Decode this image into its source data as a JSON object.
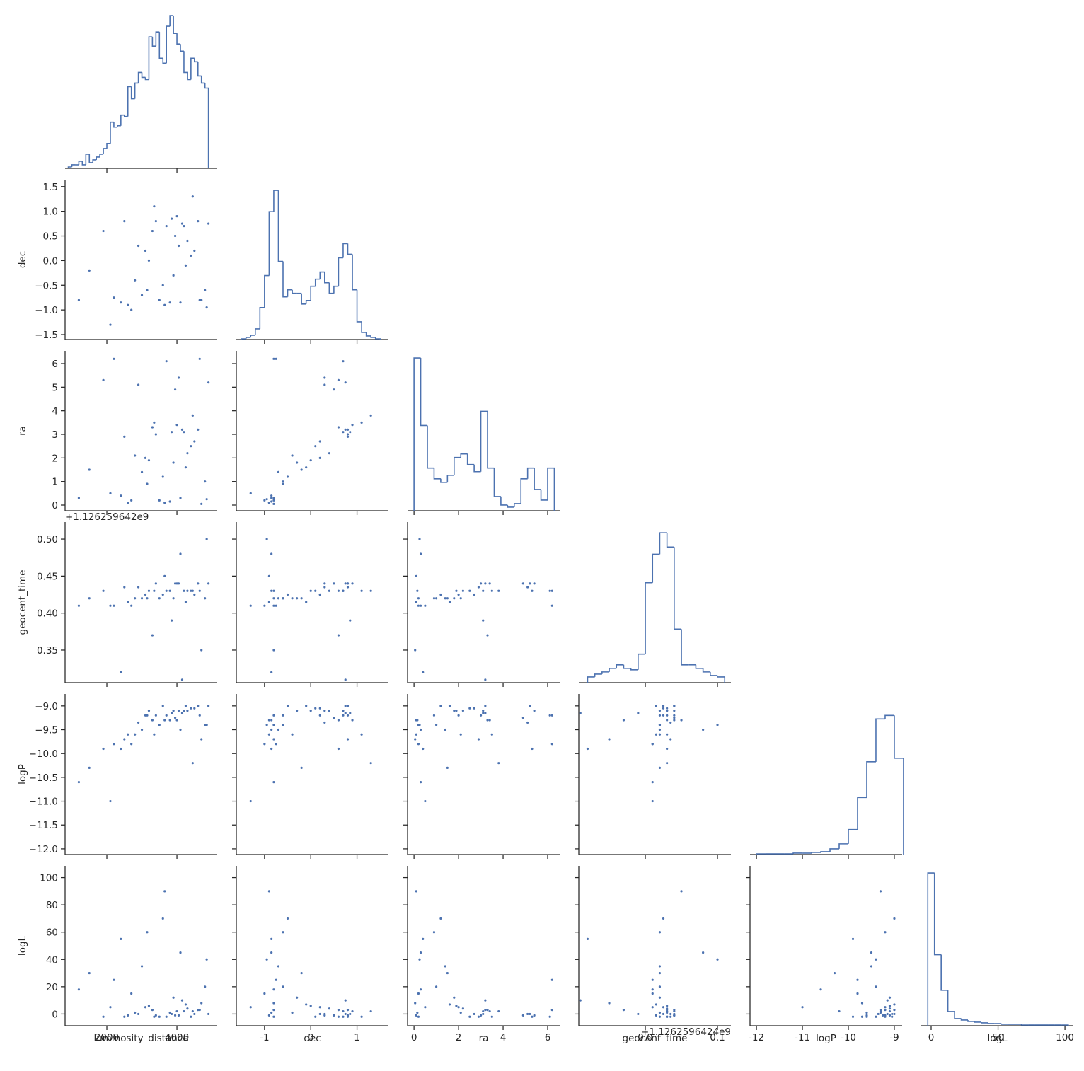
{
  "chart_data": {
    "type": "pairplot",
    "color": "#4c72b0",
    "variables": [
      {
        "name": "luminosity_distance",
        "xlim": [
          808,
          5150
        ],
        "xticks": [
          2000,
          4000
        ]
      },
      {
        "name": "dec",
        "xlim": [
          -1.61,
          1.68
        ],
        "xticks": [
          -1,
          0,
          1
        ],
        "ylim": [
          -1.6,
          1.64
        ],
        "yticks": [
          {
            "value": -1.5,
            "label": "−1.5"
          },
          {
            "value": -1.0,
            "label": "−1.0"
          },
          {
            "value": -0.5,
            "label": "−0.5"
          },
          {
            "value": 0,
            "label": "0.0"
          },
          {
            "value": 0.5,
            "label": "0.5"
          },
          {
            "value": 1.0,
            "label": "1.0"
          },
          {
            "value": 1.5,
            "label": "1.5"
          }
        ]
      },
      {
        "name": "ra",
        "xlim": [
          -0.29,
          6.54
        ],
        "xticks": [
          0,
          2,
          4,
          6
        ],
        "ylim": [
          -0.24,
          6.54
        ],
        "yticks": [
          0,
          1,
          2,
          3,
          4,
          5,
          6
        ]
      },
      {
        "name": "geocent_time",
        "xlim": [
          0.3078,
          0.5186
        ],
        "xticks": [
          {
            "value": 0.4,
            "label": "0.0"
          },
          {
            "value": 0.5,
            "label": "0.1"
          }
        ],
        "ylim": [
          0.306,
          0.523
        ],
        "yticks": [
          0.35,
          {
            "value": 0.4,
            "label": "0.40"
          },
          0.45,
          {
            "value": 0.5,
            "label": "0.50"
          }
        ],
        "y_offset": "+1.126259642e9",
        "x_offset": "+1.1262596424e9"
      },
      {
        "name": "logP",
        "xlim": [
          -12.14,
          -8.83
        ],
        "xticks": [
          -12,
          -11,
          -10,
          -9
        ],
        "ylim": [
          -12.12,
          -8.75
        ],
        "yticks": [
          {
            "value": -12,
            "label": "−12.0"
          },
          {
            "value": -11.5,
            "label": "−11.5"
          },
          {
            "value": -11,
            "label": "−11.0"
          },
          {
            "value": -10.5,
            "label": "−10.5"
          },
          {
            "value": -10,
            "label": "−10.0"
          },
          {
            "value": -9.5,
            "label": "−9.5"
          },
          {
            "value": -9,
            "label": "−9.0"
          }
        ]
      },
      {
        "name": "logL",
        "xlim": [
          -7.4,
          106.3
        ],
        "xticks": [
          0,
          50,
          100
        ],
        "ylim": [
          -8.6,
          108.6
        ],
        "yticks": [
          0,
          20,
          40,
          60,
          80,
          100
        ]
      }
    ],
    "histograms": [
      {
        "bins": [
          900,
          1000,
          1100,
          1200,
          1300,
          1400,
          1500,
          1600,
          1700,
          1800,
          1900,
          2000,
          2100,
          2200,
          2300,
          2400,
          2500,
          2600,
          2700,
          2800,
          2900,
          3000,
          3100,
          3200,
          3300,
          3400,
          3500,
          3600,
          3700,
          3800,
          3900,
          4000,
          4100,
          4200,
          4300,
          4400,
          4500,
          4600,
          4700,
          4800,
          4900
        ],
        "counts": [
          2,
          5,
          5,
          10,
          5,
          20,
          8,
          12,
          16,
          20,
          28,
          35,
          65,
          58,
          60,
          75,
          73,
          115,
          98,
          120,
          135,
          128,
          125,
          185,
          172,
          192,
          155,
          148,
          200,
          215,
          190,
          175,
          165,
          135,
          125,
          155,
          150,
          130,
          120,
          113
        ],
        "ylim": [
          0,
          225
        ]
      },
      {
        "bins": [
          -1.5,
          -1.4,
          -1.3,
          -1.2,
          -1.1,
          -1.0,
          -0.9,
          -0.8,
          -0.7,
          -0.6,
          -0.5,
          -0.4,
          -0.3,
          -0.2,
          -0.1,
          0.0,
          0.1,
          0.2,
          0.3,
          0.4,
          0.5,
          0.6,
          0.7,
          0.8,
          0.9,
          1.0,
          1.1,
          1.2,
          1.3,
          1.4,
          1.5
        ],
        "counts": [
          1,
          3,
          6,
          15,
          45,
          90,
          180,
          210,
          110,
          60,
          70,
          65,
          65,
          50,
          55,
          75,
          85,
          95,
          80,
          65,
          75,
          115,
          135,
          120,
          70,
          25,
          10,
          5,
          3,
          1
        ],
        "ylim": [
          0,
          225
        ]
      },
      {
        "bins": [
          0,
          0.3,
          0.6,
          0.9,
          1.2,
          1.5,
          1.8,
          2.1,
          2.4,
          2.7,
          3.0,
          3.3,
          3.6,
          3.9,
          4.2,
          4.5,
          4.8,
          5.1,
          5.4,
          5.7,
          6.0,
          6.3
        ],
        "counts": [
          215,
          120,
          60,
          45,
          40,
          50,
          75,
          80,
          65,
          55,
          140,
          60,
          20,
          8,
          5,
          10,
          45,
          60,
          30,
          15,
          60
        ],
        "ylim": [
          0,
          225
        ]
      },
      {
        "bins": [
          0.32,
          0.33,
          0.34,
          0.35,
          0.36,
          0.37,
          0.38,
          0.39,
          0.4,
          0.41,
          0.42,
          0.43,
          0.44,
          0.45,
          0.46,
          0.47,
          0.48,
          0.49,
          0.5,
          0.51
        ],
        "counts": [
          8,
          12,
          15,
          20,
          25,
          20,
          18,
          40,
          140,
          180,
          210,
          190,
          75,
          25,
          25,
          20,
          15,
          10,
          8
        ],
        "ylim": [
          0,
          225
        ]
      },
      {
        "bins": [
          -12.0,
          -11.8,
          -11.6,
          -11.4,
          -11.2,
          -11.0,
          -10.8,
          -10.6,
          -10.4,
          -10.2,
          -10.0,
          -9.8,
          -9.6,
          -9.4,
          -9.2,
          -9.0,
          -8.8
        ],
        "counts": [
          1,
          1,
          1,
          1,
          2,
          2,
          3,
          4,
          8,
          15,
          35,
          80,
          130,
          190,
          195,
          135
        ],
        "ylim": [
          0,
          225
        ]
      },
      {
        "bins": [
          -2.5,
          2.5,
          7.5,
          12.5,
          17.5,
          22.5,
          27.5,
          32.5,
          37.5,
          42.5,
          47.5,
          52.5,
          57.5,
          62.5,
          67.5,
          72.5,
          77.5,
          82.5,
          87.5,
          92.5,
          97.5,
          102.5
        ],
        "counts": [
          215,
          100,
          50,
          20,
          10,
          8,
          6,
          5,
          4,
          3,
          3,
          2,
          2,
          2,
          1,
          1,
          1,
          1,
          1,
          1,
          1
        ],
        "ylim": [
          0,
          225
        ]
      }
    ],
    "samples": [
      [
        3800,
        4200,
        3500,
        4600,
        3100,
        2600,
        4900,
        3900,
        4400,
        2200,
        3300,
        4100,
        2900,
        3600,
        4700,
        1500,
        3400,
        4300,
        2700,
        3700,
        4800,
        3200,
        2400,
        4000,
        3000,
        4500,
        1900,
        3650,
        4150,
        2800,
        3950,
        4650,
        3350,
        1200,
        4250,
        3850,
        2500,
        4850,
        3150,
        4050,
        2100,
        4450
      ],
      [
        -0.85,
        0.7,
        -0.8,
        0.8,
        0.2,
        -0.9,
        0.75,
        -0.3,
        0.1,
        -0.75,
        0.6,
        -0.85,
        0.3,
        -0.5,
        -0.8,
        -0.2,
        0.8,
        0.4,
        -1.0,
        0.7,
        -0.6,
        0.0,
        -0.85,
        0.9,
        -0.7,
        0.2,
        0.6,
        -0.9,
        0.75,
        -0.4,
        0.5,
        -0.8,
        1.1,
        -0.8,
        -0.1,
        0.85,
        0.8,
        -0.95,
        -0.6,
        0.3,
        -1.3,
        1.3
      ],
      [
        0.15,
        3.1,
        0.2,
        3.2,
        2.0,
        0.1,
        5.2,
        1.8,
        2.5,
        6.2,
        3.3,
        0.3,
        5.1,
        1.2,
        0.05,
        1.5,
        3.0,
        2.2,
        0.2,
        6.1,
        1.0,
        1.9,
        0.4,
        3.4,
        1.4,
        2.7,
        5.3,
        0.1,
        3.2,
        2.1,
        4.9,
        6.2,
        3.5,
        0.3,
        1.6,
        3.1,
        2.9,
        0.25,
        0.9,
        5.4,
        0.5,
        3.8
      ],
      [
        0.43,
        0.43,
        0.42,
        0.44,
        0.425,
        0.415,
        0.44,
        0.42,
        0.43,
        0.41,
        0.37,
        0.48,
        0.435,
        0.425,
        0.35,
        0.42,
        0.44,
        0.43,
        0.41,
        0.43,
        0.42,
        0.43,
        0.32,
        0.44,
        0.42,
        0.425,
        0.43,
        0.45,
        0.31,
        0.42,
        0.44,
        0.43,
        0.43,
        0.41,
        0.415,
        0.39,
        0.435,
        0.5,
        0.42,
        0.44,
        0.41,
        0.43
      ],
      [
        -9.3,
        -9.1,
        -9.4,
        -9.0,
        -9.2,
        -9.6,
        -9.0,
        -9.1,
        -9.05,
        -9.8,
        -9.3,
        -9.5,
        -9.35,
        -9.0,
        -9.7,
        -10.3,
        -9.2,
        -9.1,
        -9.8,
        -9.2,
        -9.4,
        -9.1,
        -9.9,
        -9.3,
        -9.5,
        -9.05,
        -9.9,
        -9.3,
        -9.15,
        -9.6,
        -9.25,
        -9.2,
        -9.6,
        -10.6,
        -9.0,
        -9.15,
        -9.7,
        -9.4,
        -9.2,
        -9.1,
        -11.0,
        -10.2
      ],
      [
        1,
        2,
        -2,
        3,
        5,
        -1,
        0,
        12,
        -2,
        25,
        3,
        45,
        0,
        70,
        8,
        30,
        -1,
        4,
        15,
        -2,
        20,
        6,
        55,
        2,
        35,
        0,
        -2,
        90,
        10,
        1,
        -1,
        3,
        -2,
        18,
        7,
        0,
        -2,
        40,
        60,
        -1,
        5,
        2
      ]
    ]
  }
}
